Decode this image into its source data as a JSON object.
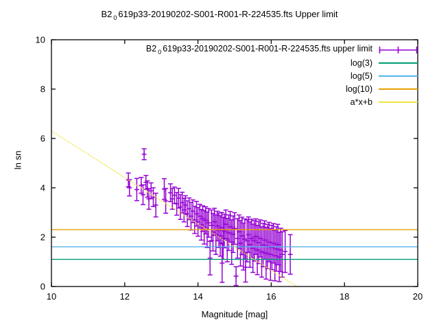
{
  "title": {
    "prefix": "B2",
    "sub": "0",
    "rest": "619p33-20190202-S001-R001-R-224535.fts Upper limit"
  },
  "axes": {
    "xlabel": "Magnitude [mag]",
    "ylabel": "ln sn",
    "x_ticks": [
      10,
      12,
      14,
      16,
      18,
      20
    ],
    "y_ticks": [
      0,
      2,
      4,
      6,
      8,
      10
    ]
  },
  "legend": {
    "entries": [
      {
        "prefix": "B2",
        "sub": "0",
        "label": "619p33-20190202-S001-R001-R-224535.fts upper limit",
        "color": "#9400d3",
        "sample": "errorbar"
      },
      {
        "prefix": "",
        "sub": "",
        "label": "log(3)",
        "color": "#009e73",
        "sample": "line"
      },
      {
        "prefix": "",
        "sub": "",
        "label": "log(5)",
        "color": "#56b4e9",
        "sample": "line"
      },
      {
        "prefix": "",
        "sub": "",
        "label": "log(10)",
        "color": "#e69f00",
        "sample": "line"
      },
      {
        "prefix": "",
        "sub": "",
        "label": "a*x+b",
        "color": "#f0e442",
        "sample": "line"
      }
    ]
  },
  "chart_data": {
    "type": "scatter",
    "title": "B2_0619p33-20190202-S001-R001-R-224535.fts Upper limit",
    "xlabel": "Magnitude [mag]",
    "ylabel": "ln sn",
    "xlim": [
      10,
      20
    ],
    "ylim": [
      0,
      10
    ],
    "grid": false,
    "legend_position": "top-right-inside",
    "series": [
      {
        "name": "B2_0619p33-20190202-S001-R001-R-224535.fts upper limit",
        "style": "yerrorbars",
        "color": "#9400d3",
        "points_format": [
          "magnitude",
          "ln_sn",
          "error"
        ],
        "points": [
          [
            12.1,
            4.32,
            0.28
          ],
          [
            12.13,
            4.0,
            0.33
          ],
          [
            12.33,
            3.93,
            0.45
          ],
          [
            12.45,
            4.1,
            0.32
          ],
          [
            12.5,
            3.72,
            0.4
          ],
          [
            12.53,
            5.36,
            0.22
          ],
          [
            12.58,
            4.22,
            0.28
          ],
          [
            12.62,
            3.95,
            0.33
          ],
          [
            12.66,
            3.55,
            0.42
          ],
          [
            12.72,
            3.88,
            0.32
          ],
          [
            12.78,
            3.62,
            0.38
          ],
          [
            12.85,
            3.3,
            0.48
          ],
          [
            13.08,
            3.95,
            0.42
          ],
          [
            13.12,
            3.47,
            0.5
          ],
          [
            13.25,
            3.8,
            0.36
          ],
          [
            13.3,
            3.55,
            0.42
          ],
          [
            13.36,
            3.7,
            0.33
          ],
          [
            13.42,
            3.35,
            0.46
          ],
          [
            13.47,
            3.58,
            0.4
          ],
          [
            13.52,
            3.22,
            0.5
          ],
          [
            13.57,
            3.4,
            0.42
          ],
          [
            13.62,
            3.1,
            0.48
          ],
          [
            13.66,
            3.3,
            0.38
          ],
          [
            13.71,
            2.95,
            0.52
          ],
          [
            13.76,
            3.15,
            0.44
          ],
          [
            13.81,
            2.85,
            0.56
          ],
          [
            13.86,
            3.05,
            0.46
          ],
          [
            13.91,
            2.7,
            0.55
          ],
          [
            13.96,
            2.95,
            0.5
          ],
          [
            14.0,
            2.62,
            0.58
          ],
          [
            14.05,
            2.85,
            0.48
          ],
          [
            14.09,
            2.5,
            0.62
          ],
          [
            14.13,
            2.75,
            0.52
          ],
          [
            14.17,
            2.4,
            0.68
          ],
          [
            14.21,
            2.68,
            0.55
          ],
          [
            14.25,
            2.3,
            0.72
          ],
          [
            14.29,
            2.58,
            0.58
          ],
          [
            14.33,
            1.15,
            0.68
          ],
          [
            14.37,
            2.48,
            0.62
          ],
          [
            14.41,
            2.2,
            0.76
          ],
          [
            14.45,
            2.62,
            0.55
          ],
          [
            14.49,
            2.1,
            0.8
          ],
          [
            14.53,
            2.45,
            0.6
          ],
          [
            14.57,
            2.28,
            0.7
          ],
          [
            14.61,
            2.05,
            0.82
          ],
          [
            14.65,
            2.38,
            0.62
          ],
          [
            14.66,
            0.95,
            0.78
          ],
          [
            14.69,
            1.95,
            0.85
          ],
          [
            14.72,
            2.25,
            0.68
          ],
          [
            14.76,
            2.52,
            0.58
          ],
          [
            14.8,
            1.88,
            0.88
          ],
          [
            14.84,
            2.18,
            0.72
          ],
          [
            14.88,
            2.42,
            0.62
          ],
          [
            14.92,
            1.8,
            0.9
          ],
          [
            14.96,
            2.12,
            0.74
          ],
          [
            15.0,
            2.35,
            0.64
          ],
          [
            15.04,
            0.42,
            0.38
          ],
          [
            15.08,
            1.95,
            0.8
          ],
          [
            15.12,
            2.22,
            0.68
          ],
          [
            15.16,
            1.75,
            0.92
          ],
          [
            15.2,
            2.05,
            0.76
          ],
          [
            15.24,
            1.62,
            0.95
          ],
          [
            15.28,
            1.92,
            0.82
          ],
          [
            15.3,
            0.78,
            0.6
          ],
          [
            15.34,
            1.85,
            0.85
          ],
          [
            15.38,
            2.1,
            0.72
          ],
          [
            15.42,
            1.7,
            0.92
          ],
          [
            15.46,
            1.95,
            0.78
          ],
          [
            15.5,
            1.55,
            0.98
          ],
          [
            15.54,
            1.85,
            0.82
          ],
          [
            15.58,
            2.02,
            0.72
          ],
          [
            15.62,
            1.48,
            1.0
          ],
          [
            15.66,
            1.78,
            0.85
          ],
          [
            15.7,
            1.95,
            0.75
          ],
          [
            15.74,
            1.4,
            1.02
          ],
          [
            15.78,
            1.68,
            0.88
          ],
          [
            15.82,
            1.88,
            0.78
          ],
          [
            15.86,
            1.35,
            1.05
          ],
          [
            15.9,
            1.62,
            0.9
          ],
          [
            15.94,
            1.8,
            0.8
          ],
          [
            15.98,
            1.3,
            1.05
          ],
          [
            16.02,
            1.58,
            0.9
          ],
          [
            16.06,
            1.75,
            0.8
          ],
          [
            16.1,
            1.25,
            1.02
          ],
          [
            16.14,
            1.52,
            0.9
          ],
          [
            16.18,
            1.7,
            0.82
          ],
          [
            16.22,
            1.2,
            1.0
          ],
          [
            16.26,
            1.48,
            0.88
          ],
          [
            16.3,
            1.3,
            0.92
          ],
          [
            16.38,
            1.42,
            0.85
          ],
          [
            16.52,
            1.3,
            0.8
          ]
        ]
      },
      {
        "name": "log(3)",
        "style": "hline",
        "y": 1.0986,
        "color": "#009e73"
      },
      {
        "name": "log(5)",
        "style": "hline",
        "y": 1.6094,
        "color": "#56b4e9"
      },
      {
        "name": "log(10)",
        "style": "hline",
        "y": 2.3026,
        "color": "#e69f00"
      },
      {
        "name": "a*x+b",
        "style": "linear",
        "a": -0.94,
        "b": 15.7,
        "x_start": 10,
        "x_end": 16.72,
        "color": "#f0e442"
      }
    ]
  }
}
